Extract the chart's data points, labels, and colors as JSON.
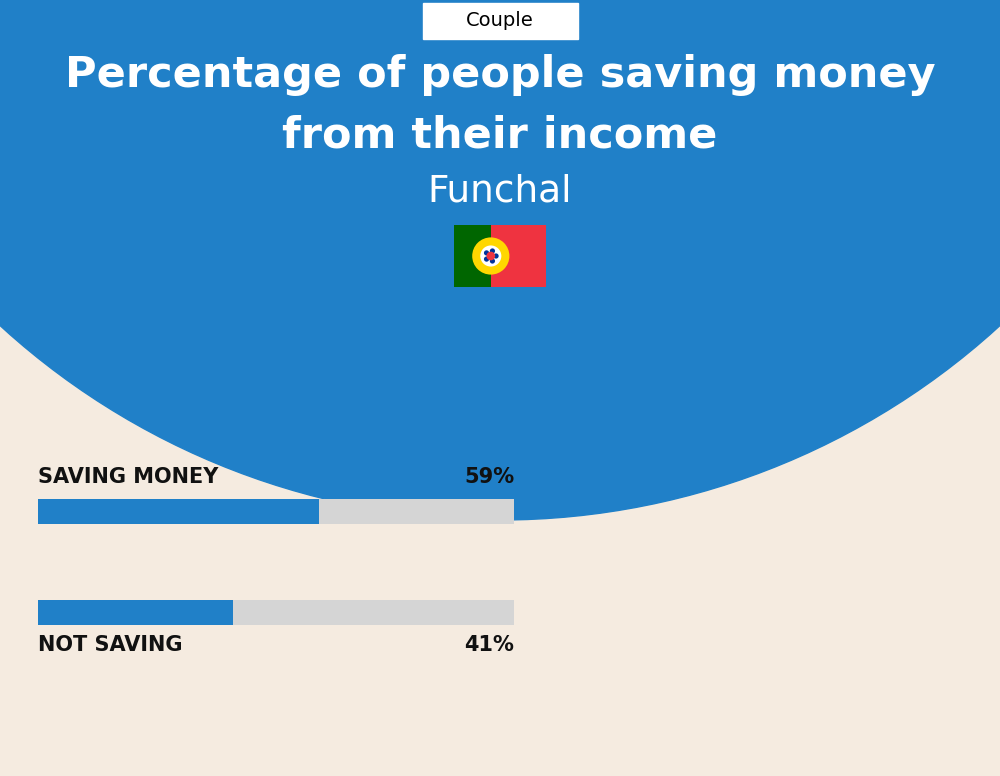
{
  "title_line1": "Percentage of people saving money",
  "title_line2": "from their income",
  "subtitle": "Funchal",
  "category_label": "Couple",
  "blue_bg_color": "#2080C8",
  "bg_color": "#F5EBE0",
  "bar_blue_color": "#2080C8",
  "bar_grey_color": "#D5D5D5",
  "saving_label": "SAVING MONEY",
  "saving_value": 59,
  "saving_pct_label": "59%",
  "not_saving_label": "NOT SAVING",
  "not_saving_value": 41,
  "not_saving_pct_label": "41%",
  "text_color_white": "#FFFFFF",
  "text_color_black": "#111111",
  "fig_width": 10.0,
  "fig_height": 7.76,
  "couple_box_color": "#FFFFFF",
  "couple_box_border": "#CCCCCC"
}
